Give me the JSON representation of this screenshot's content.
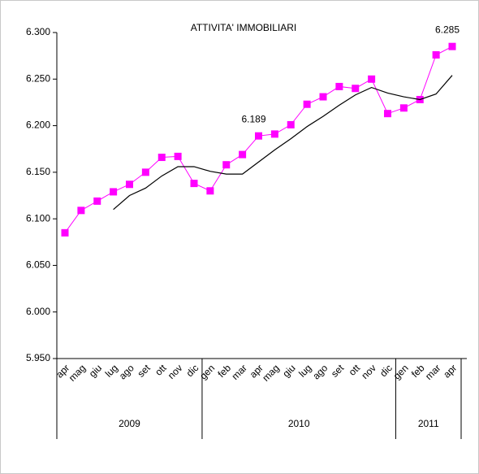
{
  "chart_data": {
    "type": "line",
    "title": "ATTIVITA' IMMOBILIARI",
    "category_groups": [
      {
        "label": "2009",
        "categories": [
          "apr",
          "mag",
          "giu",
          "lug",
          "ago",
          "set",
          "ott",
          "nov",
          "dic"
        ]
      },
      {
        "label": "2010",
        "categories": [
          "gen",
          "feb",
          "mar",
          "apr",
          "mag",
          "giu",
          "lug",
          "ago",
          "set",
          "ott",
          "nov",
          "dic"
        ]
      },
      {
        "label": "2011",
        "categories": [
          "gen",
          "feb",
          "mar",
          "apr"
        ]
      }
    ],
    "series": [
      {
        "color": "#ff00ff",
        "marker": "square",
        "values": [
          6085,
          6109,
          6119,
          6129,
          6137,
          6150,
          6166,
          6167,
          6138,
          6130,
          6158,
          6169,
          6189,
          6191,
          6201,
          6223,
          6231,
          6242,
          6240,
          6250,
          6213,
          6219,
          6228,
          6276,
          6285
        ],
        "value_labels": [
          null,
          null,
          null,
          null,
          null,
          null,
          null,
          null,
          null,
          null,
          null,
          null,
          "6.189",
          null,
          null,
          null,
          null,
          null,
          null,
          null,
          null,
          null,
          null,
          null,
          "6.285"
        ]
      },
      {
        "color": "#000000",
        "values": [
          null,
          null,
          null,
          6110,
          6125,
          6133,
          6146,
          6156,
          6156,
          6151,
          6148,
          6148,
          6161,
          6174,
          6186,
          6199,
          6210,
          6222,
          6233,
          6241,
          6235,
          6231,
          6228,
          6234,
          6254
        ]
      }
    ],
    "ylim": [
      5950,
      6300
    ],
    "yticks": [
      {
        "value": 5950,
        "label": "5.950"
      },
      {
        "value": 6000,
        "label": "6.000"
      },
      {
        "value": 6050,
        "label": "6.050"
      },
      {
        "value": 6100,
        "label": "6.100"
      },
      {
        "value": 6150,
        "label": "6.150"
      },
      {
        "value": 6200,
        "label": "6.200"
      },
      {
        "value": 6250,
        "label": "6.250"
      },
      {
        "value": 6300,
        "label": "6.300"
      }
    ],
    "grid": false
  }
}
